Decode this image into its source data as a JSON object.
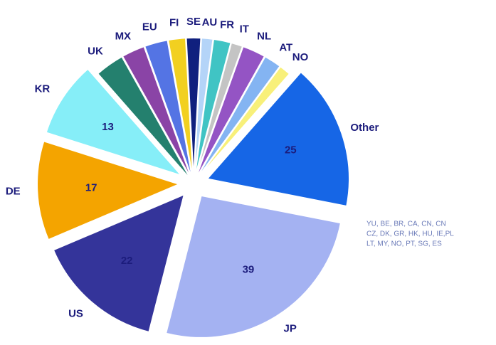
{
  "chart_data": {
    "type": "pie",
    "categories": [
      "Other",
      "JP",
      "US",
      "DE",
      "KR",
      "UK",
      "MX",
      "EU",
      "FI",
      "SE",
      "AU",
      "FR",
      "IT",
      "NL",
      "AT",
      "NO"
    ],
    "values": [
      25,
      39,
      22,
      17,
      13,
      5,
      4,
      4,
      3,
      2.5,
      2,
      3,
      2,
      4,
      3,
      2
    ],
    "value_labels": [
      "25",
      "39",
      "22",
      "17",
      "13",
      null,
      null,
      null,
      null,
      null,
      null,
      null,
      null,
      null,
      null,
      null
    ],
    "colors": [
      "#1666e6",
      "#a4b2f2",
      "#34349a",
      "#f4a400",
      "#86eef8",
      "#24806e",
      "#8a44a6",
      "#5474e4",
      "#f2d020",
      "#10207e",
      "#b4d4f8",
      "#40c4c4",
      "#c4c4c4",
      "#9454c4",
      "#84b4f2",
      "#f8f07a"
    ],
    "exploded": [
      "Other",
      "JP",
      "US",
      "DE",
      "KR"
    ],
    "annotations": [
      "YU, BE, BR, CA, CN, CN",
      "CZ, DK, GR, HK, HU, IE,PL",
      "LT, MY, NO, PT, SG, ES"
    ]
  }
}
